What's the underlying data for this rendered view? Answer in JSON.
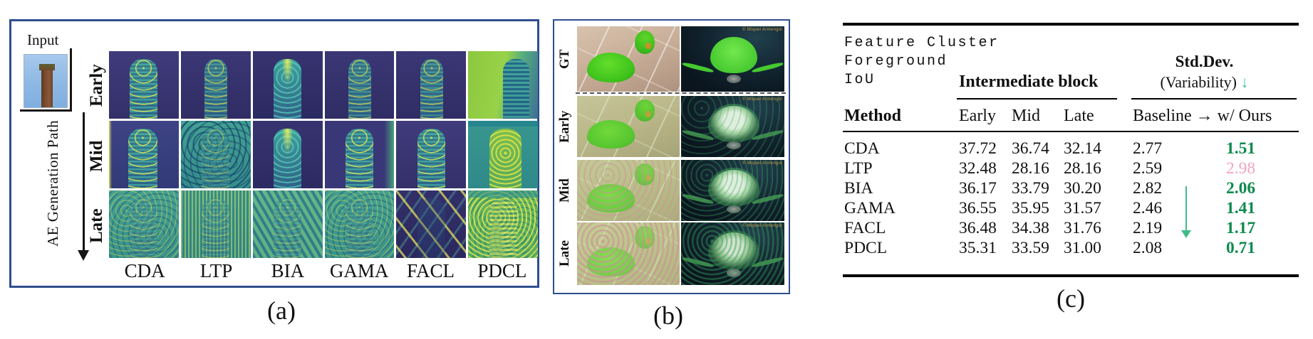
{
  "figure": {
    "panel_a": {
      "caption": "(a)",
      "input_label": "Input",
      "path_label": "AE Generation Path",
      "row_labels": [
        "Early",
        "Mid",
        "Late"
      ],
      "column_labels": [
        "CDA",
        "LTP",
        "BIA",
        "GAMA",
        "FACL",
        "PDCL"
      ],
      "cell_themes": [
        [
          "th-ind",
          "th-ind2",
          "th-indb",
          "th-ind2",
          "th-ind2",
          "th-grn"
        ],
        [
          "th-teal",
          "th-tealdot",
          "th-indb",
          "th-indt",
          "th-ind",
          "th-tealY"
        ],
        [
          "th-noise",
          "th-noisev",
          "th-noised",
          "th-noise",
          "th-diag",
          "th-dots"
        ]
      ]
    },
    "panel_b": {
      "caption": "(b)",
      "row_labels": [
        "GT",
        "Early",
        "Mid",
        "Late"
      ],
      "watermark": "© Miquel Armengol",
      "left_themes": [
        "ph ph-gt",
        "ph ph-e",
        "ph ph-m",
        "ph ph-l"
      ],
      "right_themes": [
        "dk dk-gt",
        "dk dk-e",
        "dk dk-m",
        "dk dk-l"
      ]
    },
    "panel_c": {
      "caption": "(c)",
      "corner_lines": [
        "Feature Cluster",
        "Foreground",
        "IoU"
      ],
      "group1_header": "Intermediate block",
      "group2_header_line1": "Std.Dev.",
      "group2_header_line2": "(Variability)",
      "group2_arrow": "↓",
      "method_header": "Method",
      "sub_headers": [
        "Early",
        "Mid",
        "Late"
      ],
      "baseline_header": "Baseline → w/ Ours",
      "rows": [
        {
          "method": "CDA",
          "early": "37.72",
          "mid": "36.74",
          "late": "32.14",
          "baseline": "2.77",
          "ours": "1.51",
          "ours_style": "good"
        },
        {
          "method": "LTP",
          "early": "32.48",
          "mid": "28.16",
          "late": "28.16",
          "baseline": "2.59",
          "ours": "2.98",
          "ours_style": "bad"
        },
        {
          "method": "BIA",
          "early": "36.17",
          "mid": "33.79",
          "late": "30.20",
          "baseline": "2.82",
          "ours": "2.06",
          "ours_style": "good"
        },
        {
          "method": "GAMA",
          "early": "36.55",
          "mid": "35.95",
          "late": "31.57",
          "baseline": "2.46",
          "ours": "1.41",
          "ours_style": "good"
        },
        {
          "method": "FACL",
          "early": "36.48",
          "mid": "34.38",
          "late": "31.76",
          "baseline": "2.19",
          "ours": "1.17",
          "ours_style": "good"
        },
        {
          "method": "PDCL",
          "early": "35.31",
          "mid": "33.59",
          "late": "31.00",
          "baseline": "2.08",
          "ours": "0.71",
          "ours_style": "good"
        }
      ]
    },
    "colors": {
      "border_blue": "#2e4d8e",
      "good_green": "#0e8a4e",
      "bad_pink": "#f2a3c0",
      "arrow_green": "#3fbc8a"
    }
  },
  "chart_data": {
    "type": "table",
    "title": "Feature Cluster Foreground IoU",
    "column_groups": [
      "Intermediate block",
      "Std.Dev. (Variability) ↓"
    ],
    "columns": [
      "Method",
      "Early",
      "Mid",
      "Late",
      "Baseline",
      "w/ Ours"
    ],
    "rows": [
      [
        "CDA",
        37.72,
        36.74,
        32.14,
        2.77,
        1.51
      ],
      [
        "LTP",
        32.48,
        28.16,
        28.16,
        2.59,
        2.98
      ],
      [
        "BIA",
        36.17,
        33.79,
        30.2,
        2.82,
        2.06
      ],
      [
        "GAMA",
        36.55,
        35.95,
        31.57,
        2.46,
        1.41
      ],
      [
        "FACL",
        36.48,
        34.38,
        31.76,
        2.19,
        1.17
      ],
      [
        "PDCL",
        35.31,
        33.59,
        31.0,
        2.08,
        0.71
      ]
    ],
    "notes": "w/ Ours Std.Dev. values shown in green (improved) except LTP 2.98 shown in pink (worse); green down arrow indicates lower is better"
  }
}
